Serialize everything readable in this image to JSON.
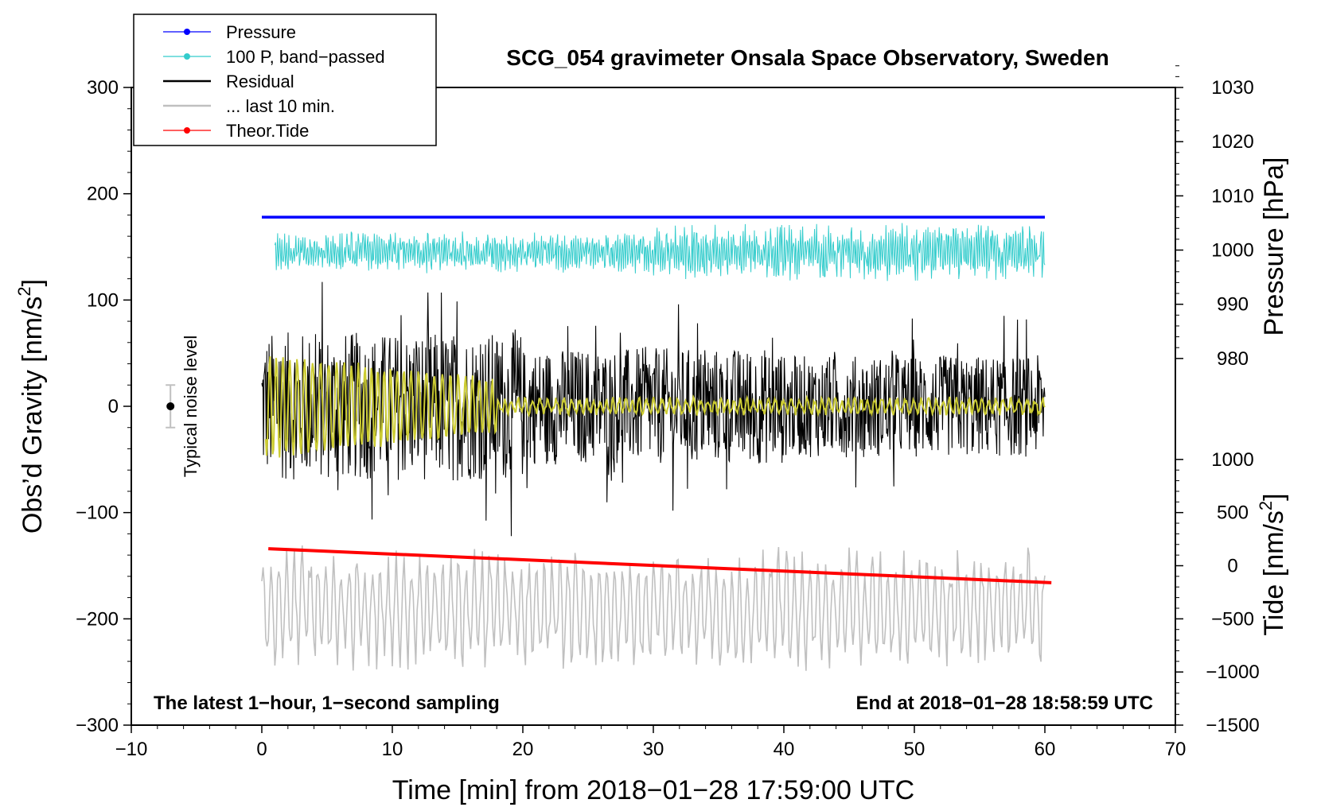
{
  "chart_data": {
    "type": "line",
    "title": "SCG_054 gravimeter Onsala Space Observatory, Sweden",
    "xlabel": "Time [min] from 2018−01−28 17:59:00 UTC",
    "ylabel_left": "Obs’d Gravity [nm/s",
    "ylabel_left_sup": "2",
    "ylabel_left_close": "]",
    "ylabel_right_pressure": "Pressure [hPa]",
    "ylabel_right_tide": "Tide [nm/s",
    "ylabel_right_tide_sup": "2",
    "ylabel_right_tide_close": "]",
    "xlim": [
      -10,
      70
    ],
    "ylim_left": [
      -300,
      300
    ],
    "x_ticks": [
      "−10",
      "0",
      "10",
      "20",
      "30",
      "40",
      "50",
      "60",
      "70"
    ],
    "x_tick_values": [
      -10,
      0,
      10,
      20,
      30,
      40,
      50,
      60,
      70
    ],
    "y_left_ticks": [
      "300",
      "200",
      "100",
      "0",
      "−100",
      "−200",
      "−300"
    ],
    "y_left_tick_values": [
      300,
      200,
      100,
      0,
      -100,
      -200,
      -300
    ],
    "pressure_ticks": [
      "1030",
      "1020",
      "1010",
      "1000",
      "990",
      "980"
    ],
    "pressure_tick_values": [
      1030,
      1020,
      1010,
      1000,
      990,
      980
    ],
    "pressure_axis_map": {
      "hpa": [
        980,
        1030
      ],
      "gravity": [
        45,
        300
      ]
    },
    "tide_ticks": [
      "1000",
      "500",
      "0",
      "−500",
      "−1000",
      "−1500"
    ],
    "tide_tick_values": [
      1000,
      500,
      0,
      -500,
      -1000,
      -1500
    ],
    "tide_axis_map": {
      "tide": [
        -1500,
        1000
      ],
      "gravity": [
        -300,
        -50
      ]
    },
    "noise_label": "Typical noise level",
    "noise_level": {
      "x": -7,
      "center": 0,
      "low": -20,
      "high": 20
    },
    "annotation_left": "The latest 1−hour, 1−second sampling",
    "annotation_right": "End at 2018−01−28 18:58:59 UTC",
    "series": [
      {
        "name": "Pressure",
        "color": "#0000ff",
        "y_start": 178,
        "y_end": 178
      },
      {
        "name": "100 P, band−passed",
        "color": "#33cccc",
        "center": 145,
        "amplitude_range": [
          10,
          25
        ]
      },
      {
        "name": "Residual",
        "color": "#000000",
        "center": 0,
        "amplitude_range": [
          -130,
          117
        ]
      },
      {
        "name": "... last 10 min.",
        "color": "#c0c0c0",
        "center": -190,
        "amplitude_range": [
          -255,
          -120
        ]
      },
      {
        "name": "Theor.Tide",
        "color": "#ff0000",
        "x_start": 0.5,
        "x_end": 60.5,
        "y_start": -134,
        "y_end": -166
      }
    ],
    "legend": [
      {
        "label": "Pressure",
        "color": "#0000ff",
        "marker": true
      },
      {
        "label": "100 P, band−passed",
        "color": "#33cccc",
        "marker": true
      },
      {
        "label": "Residual",
        "color": "#000000",
        "marker": false
      },
      {
        "label": "... last 10 min.",
        "color": "#c0c0c0",
        "marker": false
      },
      {
        "label": "Theor.Tide",
        "color": "#ff0000",
        "marker": true
      }
    ],
    "legend_position": "top-left",
    "grid": false
  }
}
